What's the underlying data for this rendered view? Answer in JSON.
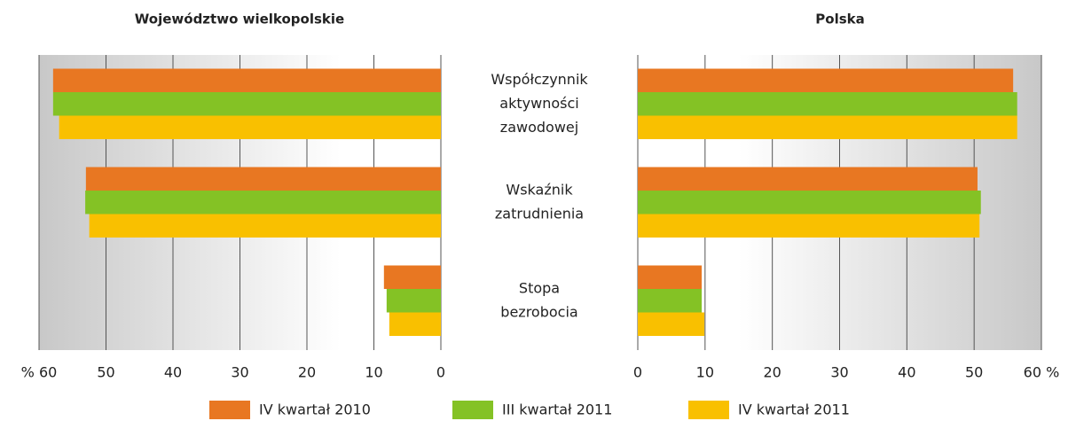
{
  "chart_data": [
    {
      "type": "bar",
      "orientation": "horizontal",
      "direction": "reversed",
      "title": "Województwo wielkopolskie",
      "categories": [
        [
          "Współczynnik",
          "aktywności",
          "zawodowej"
        ],
        [
          "Wskaźnik",
          "zatrudnienia"
        ],
        [
          "Stopa",
          "bezrobocia"
        ]
      ],
      "xlim": [
        0,
        60
      ],
      "xticks": [
        0,
        10,
        20,
        30,
        40,
        50,
        {
          "value": 60,
          "label": "% 60"
        }
      ],
      "grid": true,
      "series": [
        {
          "name": "IV kwartał 2010",
          "color": "#e87722",
          "values": [
            57.9,
            53.0,
            8.5
          ]
        },
        {
          "name": "III kwartał 2011",
          "color": "#84c225",
          "values": [
            57.9,
            53.1,
            8.1
          ]
        },
        {
          "name": "IV kwartał 2011",
          "color": "#f9c000",
          "values": [
            57.0,
            52.5,
            7.7
          ]
        }
      ]
    },
    {
      "type": "bar",
      "orientation": "horizontal",
      "direction": "normal",
      "title": "Polska",
      "xlim": [
        0,
        60
      ],
      "xticks": [
        0,
        10,
        20,
        30,
        40,
        50,
        {
          "value": 60,
          "label": "60 %"
        }
      ],
      "grid": true,
      "series": [
        {
          "color": "#e87722",
          "values": [
            55.8,
            50.5,
            9.5
          ]
        },
        {
          "color": "#84c225",
          "values": [
            56.4,
            51.0,
            9.5
          ]
        },
        {
          "color": "#f9c000",
          "values": [
            56.4,
            50.8,
            9.9
          ]
        }
      ]
    }
  ]
}
